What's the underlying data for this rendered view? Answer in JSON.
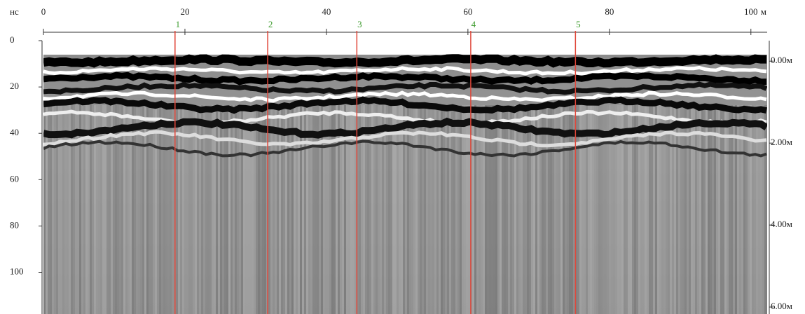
{
  "chart_data": {
    "type": "radargram",
    "x_unit": "м",
    "y_unit": "нс",
    "xlim": [
      0,
      102.3
    ],
    "xticks": [
      0,
      20,
      40,
      60,
      80,
      100
    ],
    "ylim": [
      0,
      118
    ],
    "yticks": [
      0,
      20,
      40,
      60,
      80,
      100
    ],
    "y2lim": [
      -0.5,
      6.17
    ],
    "y2ticks": [
      {
        "value": 0,
        "label": "0.00м"
      },
      {
        "value": 2,
        "label": "2.00м"
      },
      {
        "value": 4,
        "label": "4.00м"
      },
      {
        "value": 6,
        "label": "6.00м"
      }
    ],
    "markers": {
      "labels": [
        "1",
        "2",
        "3",
        "4",
        "5"
      ],
      "x": [
        18.6,
        31.7,
        44.3,
        60.4,
        75.2
      ],
      "color": "#e0473a",
      "label_color": "#3a9a2a"
    }
  }
}
